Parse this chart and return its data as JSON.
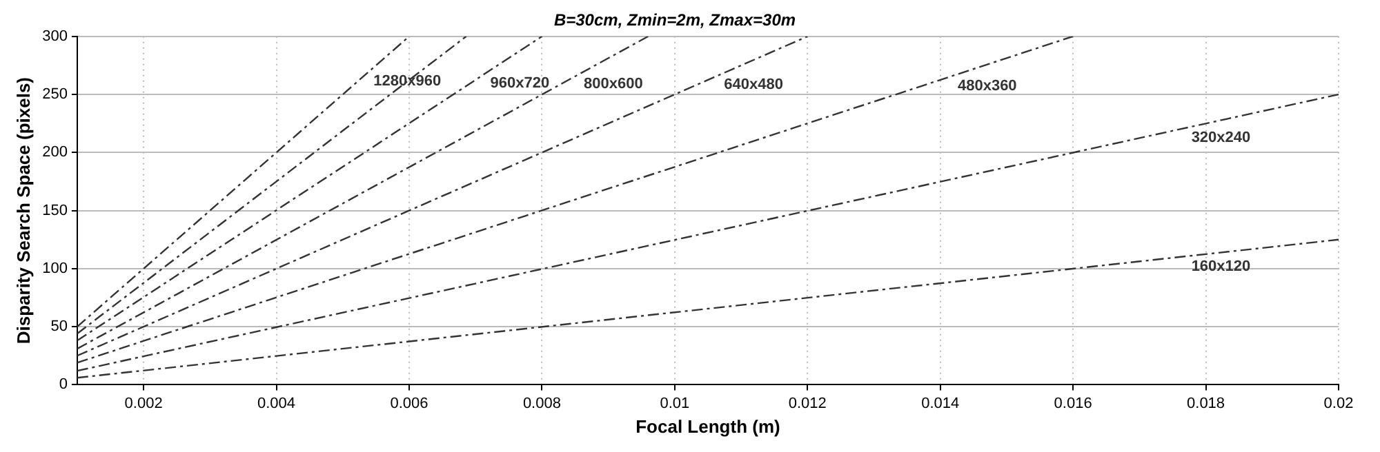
{
  "chart_data": {
    "type": "line",
    "title": "B=30cm, Zmin=2m, Zmax=30m",
    "xlabel": "Focal Length (m)",
    "ylabel": "Disparity Search Space (pixels)",
    "xlim": [
      0.001,
      0.02
    ],
    "xticks": [
      0.002,
      0.004,
      0.006,
      0.008,
      0.01,
      0.012,
      0.014,
      0.016,
      0.018,
      0.02
    ],
    "ylim": [
      0,
      300
    ],
    "yticks": [
      0,
      50,
      100,
      150,
      200,
      250,
      300
    ],
    "grid": true,
    "legend": false,
    "marker": "none",
    "line_style": "dashed",
    "series": [
      {
        "name": "1280x960",
        "color": "#333333",
        "x": [
          0.001,
          0.006
        ],
        "values": [
          50,
          300
        ]
      },
      {
        "color": "#333333",
        "x": [
          0.001,
          0.00686
        ],
        "values": [
          44,
          300
        ]
      },
      {
        "name": "960x720",
        "color": "#333333",
        "x": [
          0.001,
          0.008
        ],
        "values": [
          38,
          300
        ]
      },
      {
        "name": "800x600",
        "color": "#333333",
        "x": [
          0.001,
          0.0096
        ],
        "values": [
          31,
          300
        ]
      },
      {
        "name": "640x480",
        "color": "#333333",
        "x": [
          0.001,
          0.012
        ],
        "values": [
          25,
          300
        ]
      },
      {
        "name": "480x360",
        "color": "#333333",
        "x": [
          0.001,
          0.016
        ],
        "values": [
          19,
          300
        ]
      },
      {
        "name": "320x240",
        "color": "#333333",
        "x": [
          0.001,
          0.02
        ],
        "values": [
          12,
          250
        ]
      },
      {
        "name": "160x120",
        "color": "#333333",
        "x": [
          0.001,
          0.02
        ],
        "values": [
          6,
          125
        ]
      }
    ]
  }
}
